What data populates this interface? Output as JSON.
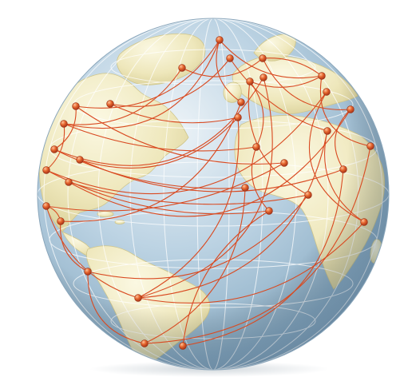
{
  "illustration": {
    "subject": "network-globe",
    "colors": {
      "ocean_light": "#dce9f1",
      "ocean_mid": "#a9c5d9",
      "ocean_dark": "#7f9fb8",
      "land_light": "#f5f1d2",
      "land_mid": "#e6dfae",
      "land_shadow": "#d2c98c",
      "grid": "#ffffff",
      "route": "#d94a21",
      "node": "#e4642c",
      "node_highlight": "#ffc39a",
      "node_dark": "#a8351a"
    }
  }
}
